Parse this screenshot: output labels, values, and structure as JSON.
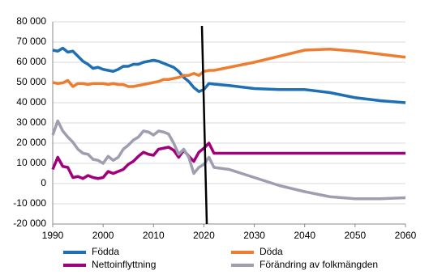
{
  "chart_data": {
    "type": "line",
    "x": [
      1990,
      1991,
      1992,
      1993,
      1994,
      1995,
      1996,
      1997,
      1998,
      1999,
      2000,
      2001,
      2002,
      2003,
      2004,
      2005,
      2006,
      2007,
      2008,
      2009,
      2010,
      2011,
      2012,
      2013,
      2014,
      2015,
      2016,
      2017,
      2018,
      2019,
      2020,
      2021,
      2022,
      2025,
      2030,
      2035,
      2040,
      2045,
      2050,
      2055,
      2060
    ],
    "series": [
      {
        "name": "Födda",
        "color": "#1f6fb4",
        "values": [
          66000,
          65500,
          67000,
          65000,
          65500,
          63000,
          60500,
          59000,
          57000,
          57500,
          56500,
          56000,
          55500,
          56500,
          58000,
          58000,
          59000,
          59000,
          60000,
          60500,
          61000,
          60500,
          59500,
          58500,
          57500,
          55500,
          52500,
          50500,
          47500,
          45500,
          46500,
          49500,
          49200,
          48500,
          47000,
          46500,
          46500,
          45000,
          42500,
          41000,
          40000
        ]
      },
      {
        "name": "Döda",
        "color": "#ed7d31",
        "values": [
          50000,
          49500,
          49800,
          51000,
          48000,
          49500,
          49500,
          49000,
          49500,
          49500,
          49500,
          49000,
          49500,
          49000,
          49000,
          48000,
          48000,
          48500,
          49000,
          49500,
          50000,
          50500,
          51500,
          51500,
          52000,
          52500,
          53500,
          53500,
          54500,
          53500,
          55500,
          56000,
          56000,
          57500,
          60000,
          63000,
          66000,
          66500,
          65500,
          64000,
          62500
        ]
      },
      {
        "name": "Nettoinflyttning",
        "color": "#a0007a",
        "values": [
          7000,
          13000,
          8500,
          8000,
          3000,
          3500,
          2500,
          4000,
          3000,
          2500,
          3000,
          6000,
          5000,
          6000,
          7000,
          9500,
          11000,
          13500,
          15500,
          14500,
          14000,
          17000,
          17500,
          18000,
          16500,
          13000,
          16500,
          13500,
          11000,
          15500,
          17500,
          20000,
          15000,
          15000,
          15000,
          15000,
          15000,
          15000,
          15000,
          15000,
          15000
        ]
      },
      {
        "name": "Förändring av folkmängden",
        "color": "#9e9eb0",
        "values": [
          24000,
          31000,
          26000,
          23000,
          20500,
          17000,
          15000,
          14500,
          12000,
          11500,
          10000,
          13500,
          11500,
          13000,
          17000,
          19000,
          21500,
          23000,
          26000,
          25500,
          24000,
          26000,
          25500,
          24500,
          20000,
          14500,
          17000,
          13000,
          5000,
          8000,
          9500,
          13000,
          8000,
          7000,
          3000,
          -1000,
          -4000,
          -6500,
          -7500,
          -7500,
          -7000
        ]
      }
    ],
    "xlim": [
      1990,
      2060
    ],
    "xticks": [
      1990,
      2000,
      2010,
      2020,
      2030,
      2040,
      2050,
      2060
    ],
    "ylim": [
      -20000,
      80000
    ],
    "yticks": [
      {
        "value": -20000,
        "label": "-20 000"
      },
      {
        "value": -10000,
        "label": "-10 000"
      },
      0,
      {
        "value": 10000,
        "label": "10 000"
      },
      {
        "value": 20000,
        "label": "20 000"
      },
      {
        "value": 30000,
        "label": "30 000"
      },
      {
        "value": 40000,
        "label": "40 000"
      },
      {
        "value": 50000,
        "label": "50 000"
      },
      {
        "value": 60000,
        "label": "60 000"
      },
      {
        "value": 70000,
        "label": "70 000"
      },
      {
        "value": 80000,
        "label": "80 000"
      }
    ],
    "grid": true
  }
}
